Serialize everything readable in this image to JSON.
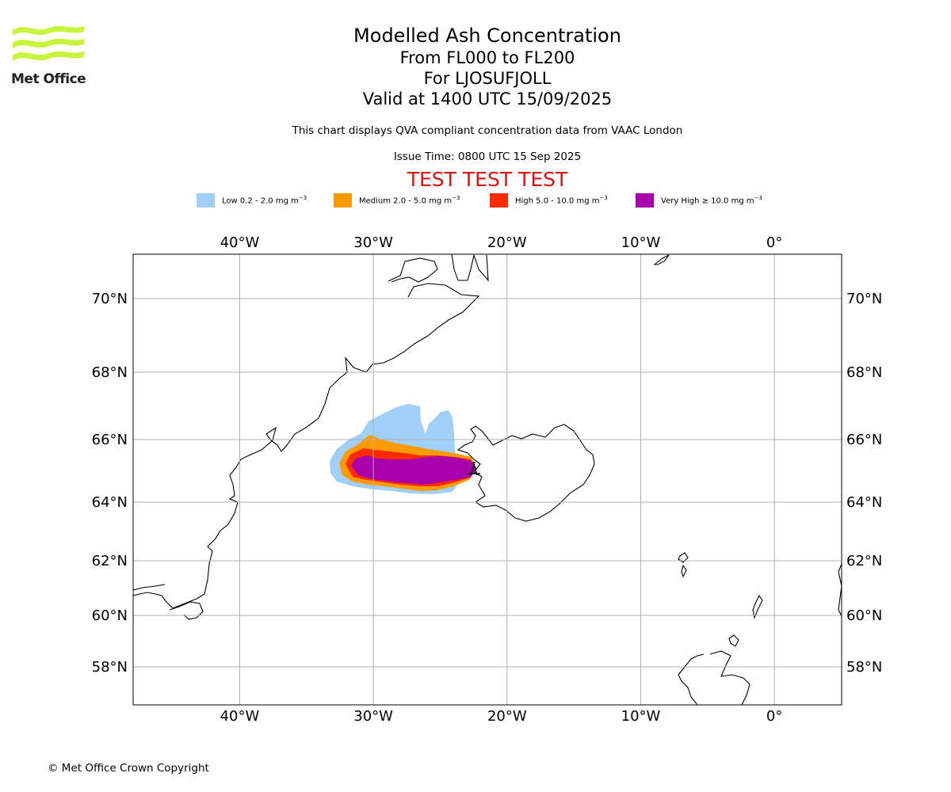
{
  "logo": {
    "text": "Met Office",
    "color": "#c8f53c"
  },
  "header": {
    "title": "Modelled Ash Concentration",
    "levels": "From FL000 to FL200",
    "volcano": "For LJOSUFJOLL",
    "valid": "Valid at 1400 UTC 15/09/2025",
    "description": "This chart displays QVA compliant concentration data from VAAC London",
    "issue_time": "Issue Time: 0800 UTC 15 Sep 2025",
    "test_banner": "TEST TEST TEST"
  },
  "legend": [
    {
      "prefix": "Low 0.2 - 2.0 mg m",
      "exp": "−3",
      "color": "#a0d0fa"
    },
    {
      "prefix": "Medium 2.0 - 5.0 mg m",
      "exp": "−3",
      "color": "#ff9a00"
    },
    {
      "prefix": "High 5.0 - 10.0 mg m",
      "exp": "−3",
      "color": "#ff2a00"
    },
    {
      "prefix": "Very High ≥ 10.0 mg m",
      "exp": "−3",
      "color": "#a800aa"
    }
  ],
  "map": {
    "projection": "equirectangular",
    "lon_range": [
      -48,
      5
    ],
    "lat_range": [
      57,
      71.5
    ],
    "lon_ticks": [
      {
        "value": -40,
        "label": "40°W"
      },
      {
        "value": -30,
        "label": "30°W"
      },
      {
        "value": -20,
        "label": "20°W"
      },
      {
        "value": -10,
        "label": "10°W"
      },
      {
        "value": 0,
        "label": "0°"
      }
    ],
    "lat_ticks": [
      {
        "value": 70,
        "label": "70°N"
      },
      {
        "value": 68,
        "label": "68°N"
      },
      {
        "value": 66,
        "label": "66°N"
      },
      {
        "value": 64,
        "label": "64°N"
      },
      {
        "value": 62,
        "label": "62°N"
      },
      {
        "value": 60,
        "label": "60°N"
      },
      {
        "value": 58,
        "label": "58°N"
      }
    ],
    "gridlines": true,
    "volcano_location": {
      "lon": -22.4,
      "lat": 65.0
    }
  },
  "footer": {
    "copyright": "© Met Office Crown Copyright"
  }
}
